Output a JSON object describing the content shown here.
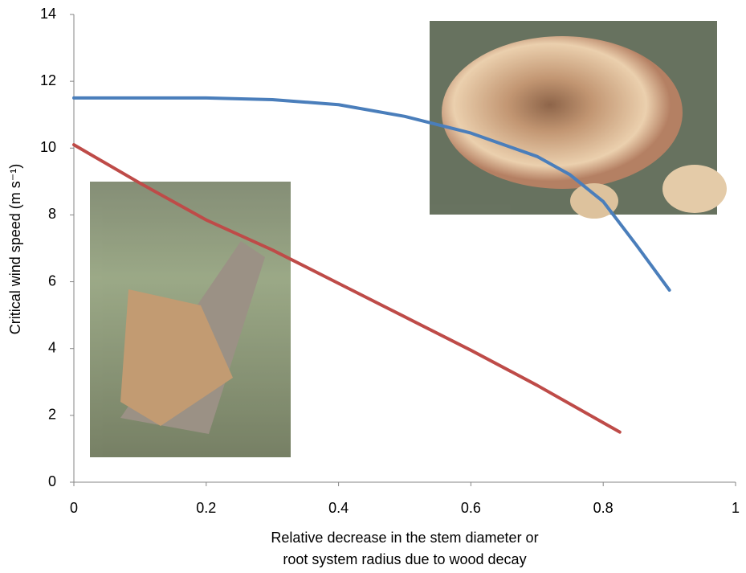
{
  "chart_data": {
    "type": "line",
    "y_label": "Critical wind speed (m s⁻¹)",
    "x_label": [
      "Relative decrease in the stem diameter or",
      "root system radius due to wood decay"
    ],
    "xlim": [
      0,
      1
    ],
    "xticks": [
      0,
      0.2,
      0.4,
      0.6,
      0.8,
      1
    ],
    "ylim": [
      0,
      14
    ],
    "yticks": [
      0,
      2,
      4,
      6,
      8,
      10,
      12,
      14
    ],
    "grid": false,
    "series": [
      {
        "color": "#4a7ebb",
        "x": [
          0,
          0.1,
          0.2,
          0.3,
          0.4,
          0.5,
          0.6,
          0.7,
          0.75,
          0.8,
          0.85,
          0.9
        ],
        "values": [
          11.5,
          11.5,
          11.5,
          11.45,
          11.3,
          10.95,
          10.45,
          9.75,
          9.2,
          8.4,
          7.1,
          5.75
        ]
      },
      {
        "color": "#be4b48",
        "x": [
          0,
          0.1,
          0.2,
          0.3,
          0.4,
          0.5,
          0.6,
          0.7,
          0.825
        ],
        "values": [
          10.1,
          8.95,
          7.85,
          6.95,
          5.95,
          4.95,
          3.95,
          2.9,
          1.5
        ]
      }
    ]
  }
}
